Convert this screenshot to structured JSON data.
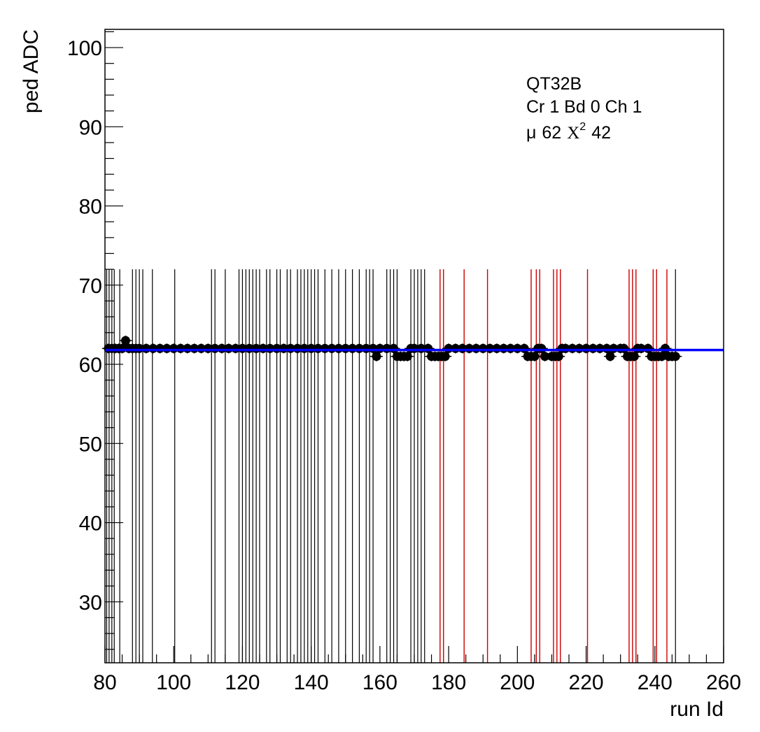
{
  "chart_data": {
    "type": "scatter",
    "title": "",
    "xlabel": "run Id",
    "ylabel": "ped ADC",
    "xlim": [
      80,
      260
    ],
    "ylim": [
      22.3,
      102.3
    ],
    "x_ticks": [
      80,
      100,
      120,
      140,
      160,
      180,
      200,
      220,
      240,
      260
    ],
    "y_ticks": [
      30,
      40,
      50,
      60,
      70,
      80,
      90,
      100
    ],
    "grid": false,
    "legend": "none",
    "info_box": {
      "line1": "QT32B",
      "line2": "Cr 1 Bd 0 Ch 1",
      "mu_symbol": "μ",
      "mu_value": "62",
      "chi_symbol": "X",
      "chi_exp": "2",
      "chi_value": "42"
    },
    "fit_line": {
      "x": [
        80,
        260
      ],
      "y": [
        61.8,
        61.8
      ],
      "color": "#0000ff"
    },
    "marker_lines": {
      "y_top": 72,
      "black_x": [
        80.5,
        81.2,
        82,
        82.7,
        84.3,
        88,
        89,
        90,
        91,
        93.8,
        100.3,
        111,
        112,
        115,
        119,
        120,
        121,
        122,
        123,
        124,
        125,
        127,
        128,
        130,
        131,
        133,
        134,
        136,
        137,
        138,
        139,
        140,
        141,
        142,
        144,
        146,
        148,
        150,
        152,
        154,
        156,
        157,
        158,
        162,
        163,
        164,
        165,
        169,
        170,
        171,
        172,
        173,
        246
      ],
      "red_x": [
        177.5,
        178.5,
        184.5,
        191.3,
        204,
        205.5,
        206.5,
        210.5,
        211.5,
        212.5,
        220.4,
        232.5,
        233.5,
        234.5,
        239.5,
        240.5,
        243.5
      ],
      "black_color": "#000000",
      "red_color": "#cc0000"
    },
    "series": [
      {
        "marker_color": "#000000",
        "points": [
          [
            81,
            62
          ],
          [
            82,
            62
          ],
          [
            83,
            62
          ],
          [
            84,
            62
          ],
          [
            85,
            62
          ],
          [
            86,
            63
          ],
          [
            87,
            62
          ],
          [
            88,
            62
          ],
          [
            89,
            62
          ],
          [
            90,
            62
          ],
          [
            92,
            62
          ],
          [
            94,
            62
          ],
          [
            96,
            62
          ],
          [
            98,
            62
          ],
          [
            100,
            62
          ],
          [
            102,
            62
          ],
          [
            104,
            62
          ],
          [
            106,
            62
          ],
          [
            108,
            62
          ],
          [
            110,
            62
          ],
          [
            112,
            62
          ],
          [
            114,
            62
          ],
          [
            116,
            62
          ],
          [
            118,
            62
          ],
          [
            120,
            62
          ],
          [
            122,
            62
          ],
          [
            124,
            62
          ],
          [
            126,
            62
          ],
          [
            128,
            62
          ],
          [
            130,
            62
          ],
          [
            132,
            62
          ],
          [
            134,
            62
          ],
          [
            136,
            62
          ],
          [
            138,
            62
          ],
          [
            140,
            62
          ],
          [
            142,
            62
          ],
          [
            144,
            62
          ],
          [
            146,
            62
          ],
          [
            148,
            62
          ],
          [
            150,
            62
          ],
          [
            152,
            62
          ],
          [
            154,
            62
          ],
          [
            156,
            62
          ],
          [
            158,
            62
          ],
          [
            159,
            61
          ],
          [
            160,
            62
          ],
          [
            162,
            62
          ],
          [
            164,
            62
          ],
          [
            165,
            61
          ],
          [
            166,
            61
          ],
          [
            167,
            61
          ],
          [
            168,
            61
          ],
          [
            169,
            62
          ],
          [
            170,
            62
          ],
          [
            172,
            62
          ],
          [
            174,
            62
          ],
          [
            175,
            61
          ],
          [
            176,
            61
          ],
          [
            177,
            61
          ],
          [
            178,
            61
          ],
          [
            179,
            61
          ],
          [
            180,
            62
          ],
          [
            182,
            62
          ],
          [
            184,
            62
          ],
          [
            186,
            62
          ],
          [
            188,
            62
          ],
          [
            190,
            62
          ],
          [
            192,
            62
          ],
          [
            194,
            62
          ],
          [
            196,
            62
          ],
          [
            198,
            62
          ],
          [
            200,
            62
          ],
          [
            202,
            62
          ],
          [
            203,
            61
          ],
          [
            204,
            61
          ],
          [
            205,
            61
          ],
          [
            206,
            62
          ],
          [
            207,
            62
          ],
          [
            208,
            61
          ],
          [
            210,
            61
          ],
          [
            211,
            61
          ],
          [
            212,
            61
          ],
          [
            213,
            62
          ],
          [
            214,
            62
          ],
          [
            216,
            62
          ],
          [
            218,
            62
          ],
          [
            220,
            62
          ],
          [
            222,
            62
          ],
          [
            224,
            62
          ],
          [
            226,
            62
          ],
          [
            227,
            61
          ],
          [
            228,
            62
          ],
          [
            230,
            62
          ],
          [
            231,
            62
          ],
          [
            232,
            61
          ],
          [
            233,
            61
          ],
          [
            234,
            61
          ],
          [
            235,
            62
          ],
          [
            236,
            62
          ],
          [
            238,
            62
          ],
          [
            239,
            61
          ],
          [
            240,
            61
          ],
          [
            241,
            61
          ],
          [
            242,
            61
          ],
          [
            243,
            62
          ],
          [
            244,
            61
          ],
          [
            245,
            61
          ],
          [
            246,
            61
          ]
        ]
      }
    ]
  }
}
